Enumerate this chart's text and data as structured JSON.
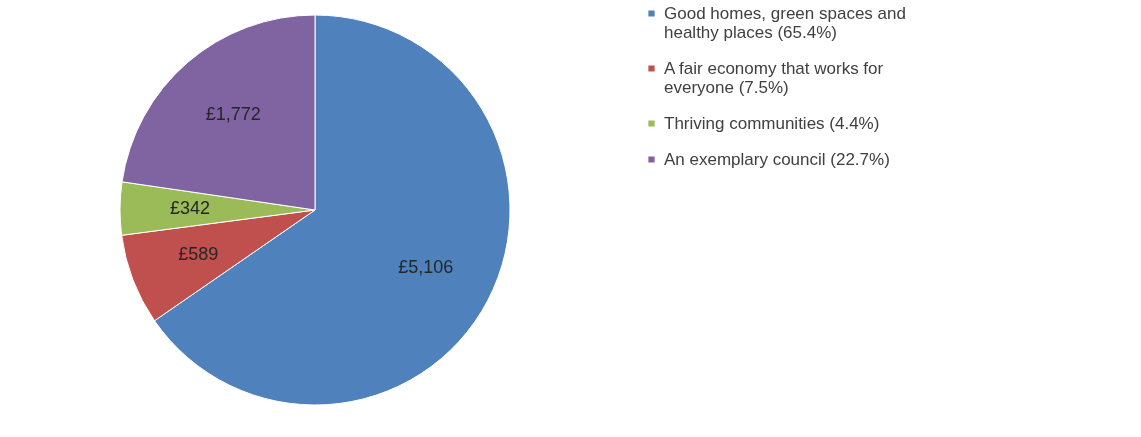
{
  "chart_data": {
    "type": "pie",
    "categories": [
      "Good homes, green spaces and healthy places (65.4%)",
      "A fair economy that works for everyone (7.5%)",
      "Thriving communities (4.4%)",
      "An exemplary council (22.7%)"
    ],
    "values": [
      5106,
      589,
      342,
      1772
    ],
    "value_labels": [
      "£5,106",
      "£589",
      "£342",
      "£1,772"
    ],
    "colors": [
      "#4f81bd",
      "#c0504d",
      "#9bbb59",
      "#8064a2"
    ],
    "legend": "right"
  }
}
